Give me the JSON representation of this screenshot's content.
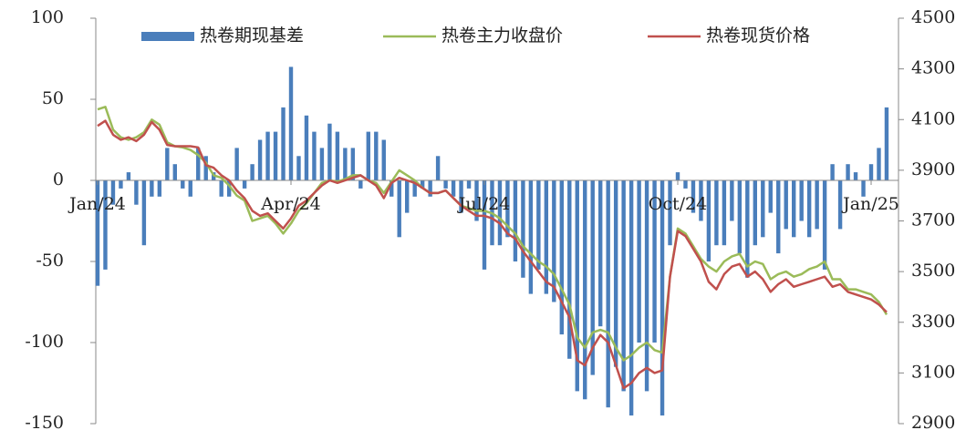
{
  "chart_data": {
    "type": "bar",
    "categories": [
      "Jan/24",
      null,
      null,
      null,
      null,
      null,
      null,
      null,
      null,
      null,
      null,
      null,
      null,
      null,
      null,
      null,
      null,
      null,
      null,
      null,
      null,
      null,
      null,
      null,
      null,
      "Apr/24",
      null,
      null,
      null,
      null,
      null,
      null,
      null,
      null,
      null,
      null,
      null,
      null,
      null,
      null,
      null,
      null,
      null,
      null,
      null,
      null,
      null,
      null,
      null,
      null,
      "Jul/24",
      null,
      null,
      null,
      null,
      null,
      null,
      null,
      null,
      null,
      null,
      null,
      null,
      null,
      null,
      null,
      null,
      null,
      null,
      null,
      null,
      null,
      null,
      null,
      null,
      "Oct/24",
      null,
      null,
      null,
      null,
      null,
      null,
      null,
      null,
      null,
      null,
      null,
      null,
      null,
      null,
      null,
      null,
      null,
      null,
      null,
      null,
      null,
      null,
      null,
      null,
      "Jan/25",
      null,
      null
    ],
    "series": [
      {
        "name": "热卷期现基差",
        "type": "bar",
        "color": "#4a7ebb",
        "values": [
          -65,
          -55,
          -15,
          -5,
          5,
          -15,
          -40,
          -10,
          -10,
          20,
          10,
          -5,
          -10,
          20,
          15,
          5,
          -10,
          -10,
          20,
          -5,
          10,
          25,
          30,
          30,
          45,
          70,
          15,
          40,
          30,
          20,
          35,
          30,
          20,
          20,
          -5,
          30,
          30,
          25,
          -10,
          -35,
          -20,
          -10,
          -5,
          -10,
          15,
          -5,
          -10,
          -20,
          -5,
          -25,
          -55,
          -40,
          -40,
          -35,
          -50,
          -60,
          -70,
          -55,
          -70,
          -75,
          -95,
          -110,
          -130,
          -135,
          -120,
          -90,
          -140,
          -115,
          -130,
          -145,
          -100,
          -130,
          -100,
          -145,
          -40,
          5,
          -5,
          -20,
          -25,
          -50,
          -40,
          -40,
          -25,
          -45,
          -60,
          -40,
          -35,
          -20,
          -45,
          -30,
          -35,
          -25,
          -35,
          -30,
          -55,
          10,
          -30,
          10,
          5,
          -10,
          10,
          20,
          45
        ]
      },
      {
        "name": "热卷主力收盘价",
        "type": "line",
        "axis": "y2",
        "color": "#9bbb59",
        "values": [
          4140,
          4150,
          4060,
          4030,
          4020,
          4030,
          4050,
          4100,
          4080,
          4010,
          3995,
          3990,
          3980,
          3960,
          3930,
          3880,
          3870,
          3840,
          3800,
          3780,
          3700,
          3710,
          3720,
          3690,
          3650,
          3690,
          3740,
          3770,
          3810,
          3850,
          3860,
          3855,
          3865,
          3880,
          3880,
          3860,
          3850,
          3810,
          3855,
          3900,
          3880,
          3860,
          3830,
          3810,
          3810,
          3820,
          3790,
          3760,
          3750,
          3740,
          3740,
          3730,
          3710,
          3680,
          3650,
          3600,
          3570,
          3540,
          3520,
          3490,
          3430,
          3370,
          3240,
          3200,
          3260,
          3270,
          3260,
          3200,
          3150,
          3170,
          3200,
          3220,
          3190,
          3180,
          3480,
          3670,
          3650,
          3600,
          3550,
          3520,
          3500,
          3540,
          3560,
          3570,
          3520,
          3540,
          3530,
          3470,
          3490,
          3500,
          3480,
          3490,
          3510,
          3520,
          3540,
          3470,
          3470,
          3430,
          3430,
          3420,
          3410,
          3380,
          3330
        ]
      },
      {
        "name": "热卷现货价格",
        "type": "line",
        "axis": "y2",
        "color": "#c0504d",
        "values": [
          4075,
          4095,
          4040,
          4020,
          4030,
          4015,
          4040,
          4090,
          4060,
          4000,
          3995,
          3995,
          3995,
          3990,
          3920,
          3910,
          3880,
          3860,
          3820,
          3790,
          3740,
          3720,
          3730,
          3700,
          3670,
          3710,
          3760,
          3780,
          3810,
          3840,
          3860,
          3850,
          3860,
          3870,
          3880,
          3860,
          3840,
          3790,
          3850,
          3870,
          3860,
          3850,
          3830,
          3810,
          3810,
          3820,
          3790,
          3760,
          3740,
          3720,
          3720,
          3710,
          3690,
          3650,
          3630,
          3580,
          3540,
          3500,
          3460,
          3440,
          3380,
          3320,
          3150,
          3130,
          3200,
          3250,
          3220,
          3130,
          3040,
          3060,
          3100,
          3120,
          3100,
          3110,
          3480,
          3660,
          3640,
          3590,
          3540,
          3460,
          3430,
          3490,
          3520,
          3530,
          3480,
          3500,
          3470,
          3420,
          3450,
          3470,
          3440,
          3450,
          3460,
          3470,
          3480,
          3440,
          3450,
          3420,
          3410,
          3400,
          3390,
          3370,
          3340
        ]
      }
    ],
    "ylim": [
      -150,
      100
    ],
    "yticks": [
      -150,
      -100,
      -50,
      0,
      50,
      100
    ],
    "y2lim": [
      2900,
      4500
    ],
    "y2ticks": [
      2900,
      3100,
      3300,
      3500,
      3700,
      3900,
      4100,
      4300,
      4500
    ],
    "grid": false,
    "legend": "top"
  }
}
